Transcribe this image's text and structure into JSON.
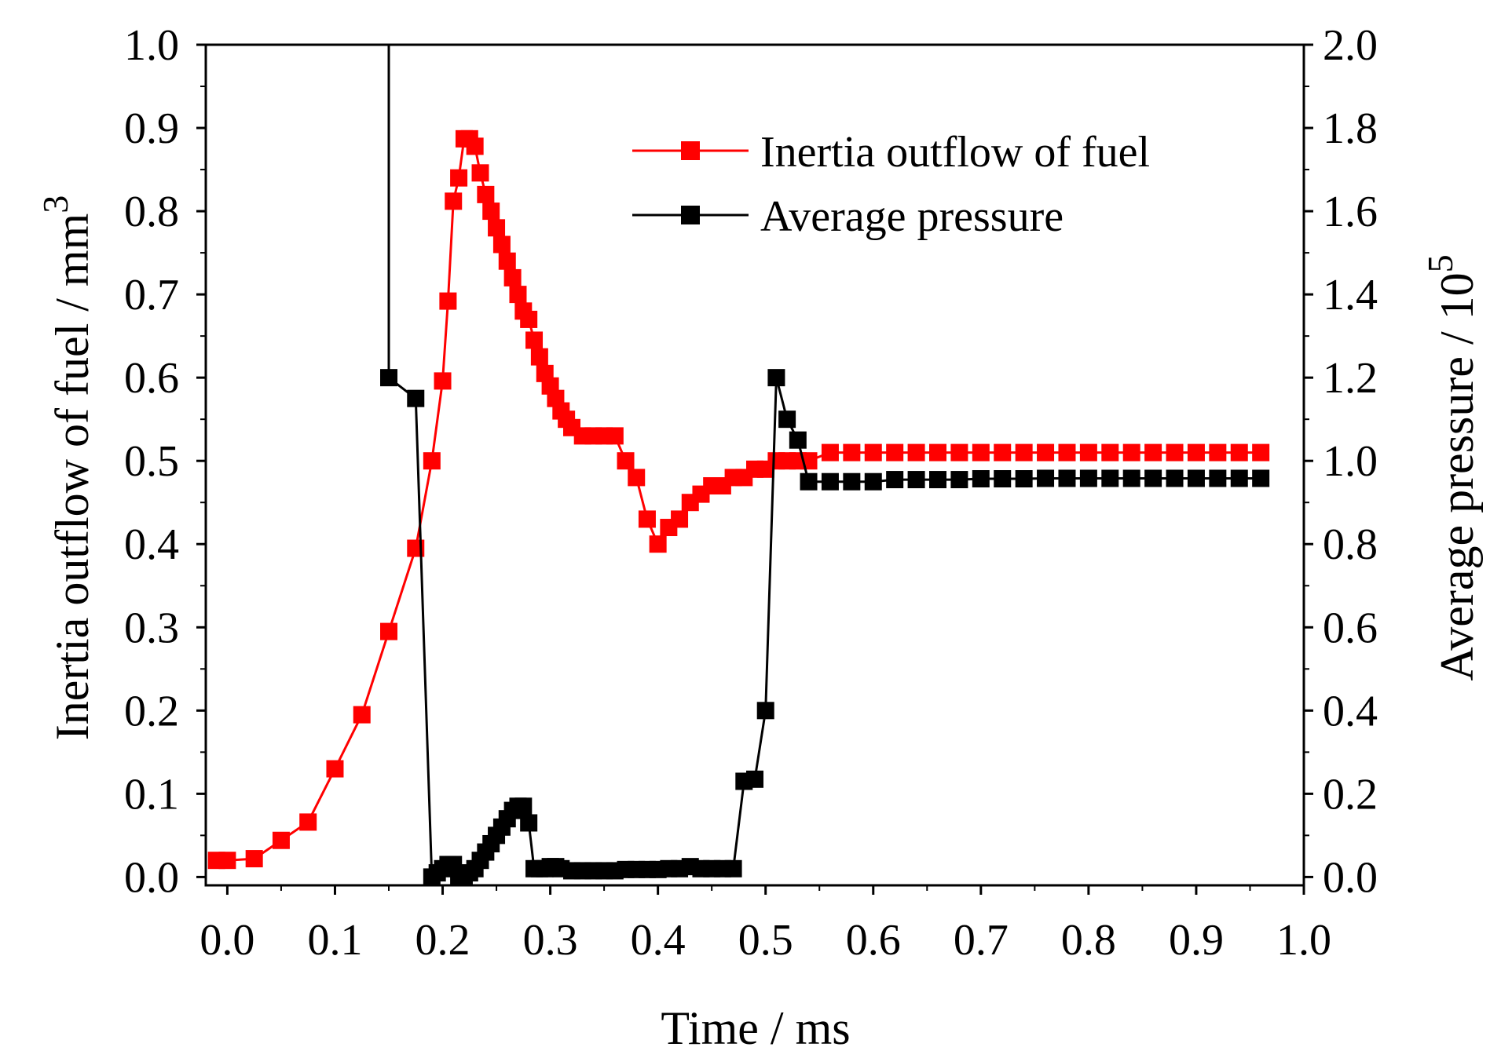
{
  "chart_data": {
    "type": "line",
    "title": "",
    "xlabel": "Time / ms",
    "ylabel_left": "Inertia outflow of fuel / mm",
    "ylabel_left_superscript": "3",
    "ylabel_right": "Average pressure / 10",
    "ylabel_right_superscript": "5",
    "xlim": [
      -0.02,
      1.0
    ],
    "ylim_left": [
      -0.01,
      1.0
    ],
    "ylim_right": [
      -0.02,
      2.0
    ],
    "x_ticks": [
      "0.0",
      "0.1",
      "0.2",
      "0.3",
      "0.4",
      "0.5",
      "0.6",
      "0.7",
      "0.8",
      "0.9",
      "1.0"
    ],
    "y_left_ticks": [
      "0.0",
      "0.1",
      "0.2",
      "0.3",
      "0.4",
      "0.5",
      "0.6",
      "0.7",
      "0.8",
      "0.9",
      "1.0"
    ],
    "y_right_ticks": [
      "0.0",
      "0.2",
      "0.4",
      "0.6",
      "0.8",
      "1.0",
      "1.2",
      "1.4",
      "1.6",
      "1.8",
      "2.0"
    ],
    "grid": false,
    "legend_position": "top-right",
    "series": [
      {
        "name": "Inertia outflow of fuel",
        "color": "#ff0000",
        "axis": "left",
        "marker": "square",
        "x": [
          -0.01,
          0.0,
          0.025,
          0.05,
          0.075,
          0.1,
          0.125,
          0.15,
          0.175,
          0.19,
          0.2,
          0.205,
          0.21,
          0.215,
          0.22,
          0.225,
          0.23,
          0.235,
          0.24,
          0.245,
          0.25,
          0.255,
          0.26,
          0.265,
          0.27,
          0.275,
          0.28,
          0.285,
          0.29,
          0.295,
          0.3,
          0.305,
          0.31,
          0.315,
          0.32,
          0.33,
          0.34,
          0.35,
          0.36,
          0.37,
          0.38,
          0.39,
          0.4,
          0.41,
          0.42,
          0.43,
          0.44,
          0.45,
          0.46,
          0.47,
          0.48,
          0.49,
          0.5,
          0.51,
          0.52,
          0.53,
          0.54,
          0.56,
          0.58,
          0.6,
          0.62,
          0.64,
          0.66,
          0.68,
          0.7,
          0.72,
          0.74,
          0.76,
          0.78,
          0.8,
          0.82,
          0.84,
          0.86,
          0.88,
          0.9,
          0.92,
          0.94,
          0.96
        ],
        "values": [
          0.02,
          0.02,
          0.022,
          0.044,
          0.066,
          0.13,
          0.195,
          0.295,
          0.395,
          0.5,
          0.596,
          0.692,
          0.812,
          0.84,
          0.887,
          0.887,
          0.878,
          0.846,
          0.82,
          0.8,
          0.78,
          0.76,
          0.74,
          0.72,
          0.7,
          0.68,
          0.67,
          0.645,
          0.625,
          0.605,
          0.59,
          0.575,
          0.56,
          0.55,
          0.54,
          0.53,
          0.53,
          0.53,
          0.53,
          0.5,
          0.48,
          0.43,
          0.4,
          0.42,
          0.43,
          0.45,
          0.46,
          0.47,
          0.47,
          0.48,
          0.48,
          0.49,
          0.49,
          0.5,
          0.5,
          0.5,
          0.5,
          0.51,
          0.51,
          0.51,
          0.51,
          0.51,
          0.51,
          0.51,
          0.51,
          0.51,
          0.51,
          0.51,
          0.51,
          0.51,
          0.51,
          0.51,
          0.51,
          0.51,
          0.51,
          0.51,
          0.51,
          0.51
        ]
      },
      {
        "name": "Average pressure",
        "color": "#000000",
        "axis": "right",
        "marker": "square",
        "line_start": [
          0.15,
          2.0
        ],
        "x": [
          0.15,
          0.175,
          0.19,
          0.195,
          0.2,
          0.205,
          0.21,
          0.215,
          0.22,
          0.225,
          0.23,
          0.235,
          0.24,
          0.245,
          0.25,
          0.255,
          0.26,
          0.265,
          0.27,
          0.275,
          0.28,
          0.285,
          0.29,
          0.295,
          0.3,
          0.305,
          0.31,
          0.32,
          0.33,
          0.34,
          0.35,
          0.36,
          0.37,
          0.38,
          0.39,
          0.4,
          0.41,
          0.42,
          0.43,
          0.44,
          0.45,
          0.46,
          0.47,
          0.48,
          0.49,
          0.5,
          0.51,
          0.52,
          0.53,
          0.54,
          0.56,
          0.58,
          0.6,
          0.62,
          0.64,
          0.66,
          0.68,
          0.7,
          0.72,
          0.74,
          0.76,
          0.78,
          0.8,
          0.82,
          0.84,
          0.86,
          0.88,
          0.9,
          0.92,
          0.94,
          0.96
        ],
        "values": [
          1.2,
          1.15,
          0.0,
          0.01,
          0.02,
          0.03,
          0.03,
          0.0,
          0.0,
          0.01,
          0.02,
          0.04,
          0.06,
          0.08,
          0.1,
          0.12,
          0.14,
          0.16,
          0.17,
          0.17,
          0.13,
          0.02,
          0.02,
          0.02,
          0.025,
          0.025,
          0.02,
          0.015,
          0.015,
          0.015,
          0.015,
          0.015,
          0.018,
          0.018,
          0.018,
          0.018,
          0.02,
          0.02,
          0.025,
          0.02,
          0.02,
          0.02,
          0.02,
          0.23,
          0.235,
          0.4,
          1.2,
          1.1,
          1.05,
          0.95,
          0.95,
          0.95,
          0.95,
          0.955,
          0.955,
          0.955,
          0.955,
          0.957,
          0.957,
          0.957,
          0.958,
          0.958,
          0.958,
          0.958,
          0.958,
          0.958,
          0.958,
          0.958,
          0.958,
          0.958,
          0.958
        ]
      }
    ]
  }
}
